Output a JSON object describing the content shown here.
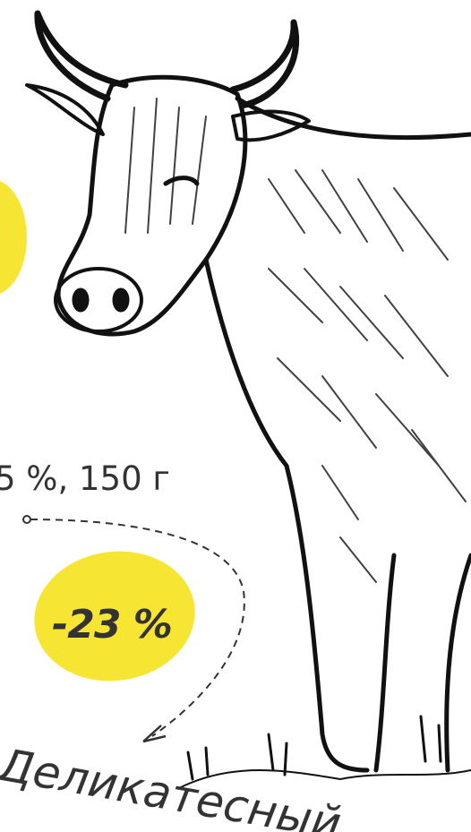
{
  "promo": {
    "weight_text": "5 %, 150 г",
    "discount": "-23 %",
    "product_name": "Деликатесный"
  }
}
